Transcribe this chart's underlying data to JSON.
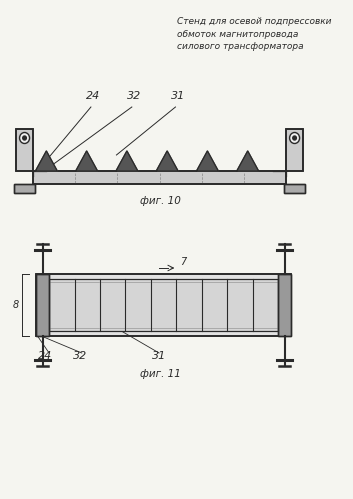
{
  "title": "Стенд для осевой подпрессовки\nобмоток магнитопровода\nсилового трансформатора",
  "fig10_label": "фиг. 10",
  "fig11_label": "фиг. 11",
  "bg_color": "#f5f5f0",
  "line_color": "#2a2a2a",
  "light_line_color": "#888888",
  "label_24": "24",
  "label_32": "32",
  "label_31": "31",
  "label_7": "7",
  "label_8": "8"
}
